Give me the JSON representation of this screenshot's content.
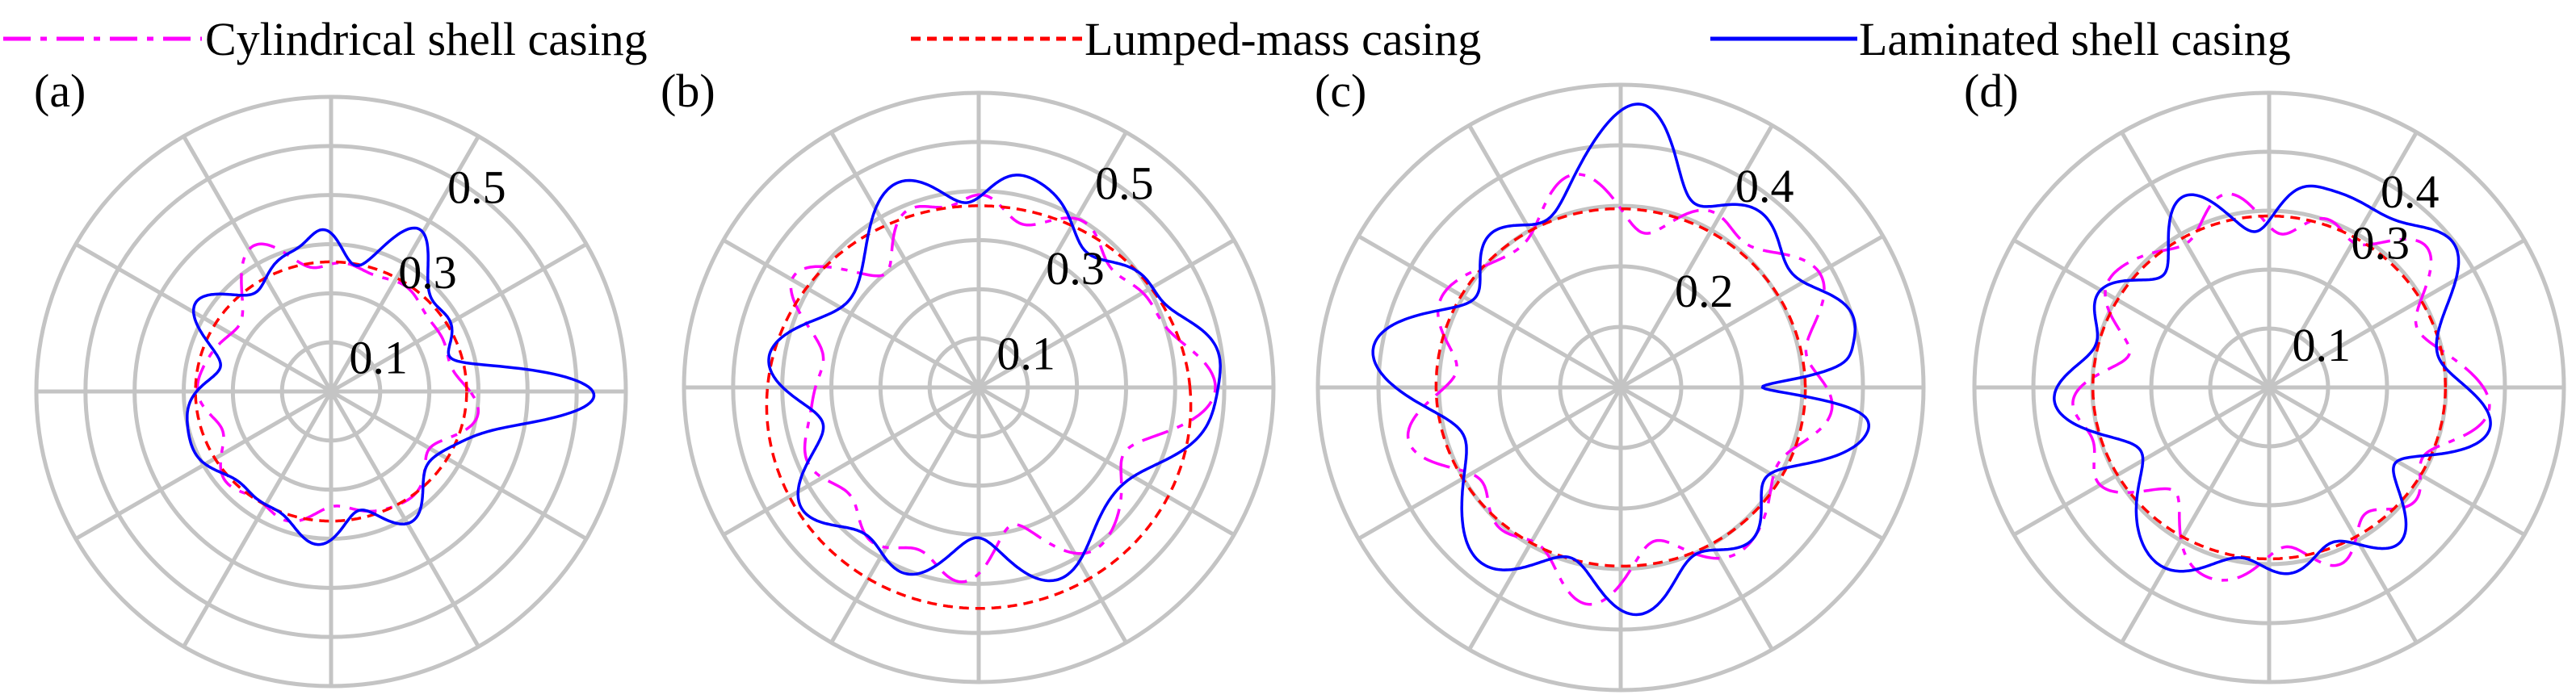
{
  "legend": [
    {
      "label": "Cylindrical shell casing",
      "color": "#ff00ff",
      "dash": "dashdot"
    },
    {
      "label": "Lumped-mass casing",
      "color": "#ff0000",
      "dash": "dashed"
    },
    {
      "label": "Laminated shell casing",
      "color": "#0000ff",
      "dash": "solid"
    }
  ],
  "colors": {
    "grid": "#c4c4c4",
    "cylindrical": "#ff00ff",
    "lumped": "#ff0000",
    "laminated": "#0000ff"
  },
  "chart_data": [
    {
      "type": "polar-line",
      "label": "(a)",
      "rmax": 0.6,
      "rings": [
        0.1,
        0.2,
        0.3,
        0.4,
        0.5,
        0.6
      ],
      "ring_labels": [
        {
          "value": 0.1,
          "text": "0.1"
        },
        {
          "value": 0.3,
          "text": "0.3"
        },
        {
          "value": 0.5,
          "text": "0.5"
        }
      ],
      "spokes_deg": 30,
      "grid": true,
      "series": [
        {
          "name": "Cylindrical shell casing",
          "base": 0.26,
          "harmonics": [
            [
              6,
              0.016,
              0.3
            ],
            [
              8,
              0.012,
              1.4
            ],
            [
              3,
              0.01,
              0.5
            ],
            [
              11,
              0.008,
              2.0
            ]
          ],
          "bumps": [
            [
              2,
              0.04,
              0.15
            ]
          ]
        },
        {
          "name": "Lumped-mass casing",
          "base": 0.27,
          "harmonics": [
            [
              2,
              0.006,
              0.0
            ]
          ],
          "bumps": []
        },
        {
          "name": "Laminated shell casing",
          "base": 0.28,
          "harmonics": [
            [
              7,
              0.022,
              0.6
            ],
            [
              9,
              0.017,
              2.2
            ],
            [
              5,
              0.014,
              1.1
            ],
            [
              12,
              0.009,
              0.4
            ]
          ],
          "bumps": [
            [
              0,
              0.23,
              0.11
            ],
            [
              1.1,
              0.07,
              0.12
            ],
            [
              1.6,
              0.05,
              0.1
            ]
          ]
        }
      ]
    },
    {
      "type": "polar-line",
      "label": "(b)",
      "rmax": 0.6,
      "rings": [
        0.1,
        0.2,
        0.3,
        0.4,
        0.5,
        0.6
      ],
      "ring_labels": [
        {
          "value": 0.1,
          "text": "0.1"
        },
        {
          "value": 0.3,
          "text": "0.3"
        },
        {
          "value": 0.5,
          "text": "0.5"
        }
      ],
      "spokes_deg": 30,
      "grid": true,
      "series": [
        {
          "name": "Cylindrical shell casing",
          "base": 0.36,
          "harmonics": [
            [
              7,
              0.03,
              0.2
            ],
            [
              9,
              0.024,
              1.6
            ],
            [
              12,
              0.016,
              0.7
            ],
            [
              4,
              0.015,
              2.4
            ]
          ],
          "bumps": [
            [
              0.15,
              0.13,
              0.18
            ],
            [
              1.55,
              0.05,
              0.12
            ]
          ]
        },
        {
          "name": "Lumped-mass casing",
          "base": 0.42,
          "harmonics": [
            [
              1,
              0.04,
              1.57
            ],
            [
              2,
              0.01,
              0.0
            ]
          ],
          "bumps": []
        },
        {
          "name": "Laminated shell casing",
          "base": 0.38,
          "harmonics": [
            [
              6,
              0.035,
              0.9
            ],
            [
              8,
              0.03,
              2.1
            ],
            [
              10,
              0.02,
              0.5
            ],
            [
              3,
              0.02,
              1.3
            ]
          ],
          "bumps": [
            [
              0.2,
              0.17,
              0.16
            ],
            [
              1.45,
              0.07,
              0.12
            ]
          ]
        }
      ]
    },
    {
      "type": "polar-line",
      "label": "(c)",
      "rmax": 0.5,
      "rings": [
        0.1,
        0.2,
        0.3,
        0.4,
        0.5
      ],
      "ring_labels": [
        {
          "value": 0.2,
          "text": "0.2"
        },
        {
          "value": 0.4,
          "text": "0.4"
        }
      ],
      "spokes_deg": 30,
      "grid": true,
      "series": [
        {
          "name": "Cylindrical shell casing",
          "base": 0.31,
          "harmonics": [
            [
              7,
              0.025,
              0.4
            ],
            [
              9,
              0.02,
              1.8
            ],
            [
              11,
              0.014,
              0.2
            ],
            [
              5,
              0.015,
              2.6
            ]
          ],
          "bumps": [
            [
              0.35,
              0.07,
              0.18
            ]
          ]
        },
        {
          "name": "Lumped-mass casing",
          "base": 0.3,
          "harmonics": [
            [
              2,
              0.005,
              0.3
            ]
          ],
          "bumps": []
        },
        {
          "name": "Laminated shell casing",
          "base": 0.33,
          "harmonics": [
            [
              6,
              0.035,
              1.2
            ],
            [
              8,
              0.027,
              0.3
            ],
            [
              10,
              0.018,
              2.2
            ],
            [
              4,
              0.02,
              0.8
            ]
          ],
          "bumps": [
            [
              0.3,
              0.13,
              0.16
            ],
            [
              1.45,
              0.13,
              0.14
            ],
            [
              0.0,
              -0.16,
              0.05
            ]
          ]
        }
      ]
    },
    {
      "type": "polar-line",
      "label": "(d)",
      "rmax": 0.5,
      "rings": [
        0.1,
        0.2,
        0.3,
        0.4,
        0.5
      ],
      "ring_labels": [
        {
          "value": 0.1,
          "text": "0.1"
        },
        {
          "value": 0.3,
          "text": "0.3"
        },
        {
          "value": 0.4,
          "text": "0.4"
        }
      ],
      "spokes_deg": 30,
      "grid": true,
      "series": [
        {
          "name": "Cylindrical shell casing",
          "base": 0.3,
          "harmonics": [
            [
              7,
              0.025,
              0.9
            ],
            [
              10,
              0.02,
              0.1
            ],
            [
              5,
              0.02,
              1.9
            ],
            [
              13,
              0.012,
              2.5
            ]
          ],
          "bumps": [
            [
              0.1,
              0.05,
              0.2
            ]
          ]
        },
        {
          "name": "Lumped-mass casing",
          "base": 0.295,
          "harmonics": [
            [
              2,
              0.004,
              0.0
            ]
          ],
          "bumps": []
        },
        {
          "name": "Laminated shell casing",
          "base": 0.31,
          "harmonics": [
            [
              6,
              0.03,
              0.2
            ],
            [
              9,
              0.025,
              1.5
            ],
            [
              11,
              0.015,
              2.8
            ],
            [
              4,
              0.018,
              1.1
            ]
          ],
          "bumps": [
            [
              0.65,
              0.12,
              0.16
            ],
            [
              1.45,
              0.03,
              0.1
            ]
          ]
        }
      ]
    }
  ]
}
